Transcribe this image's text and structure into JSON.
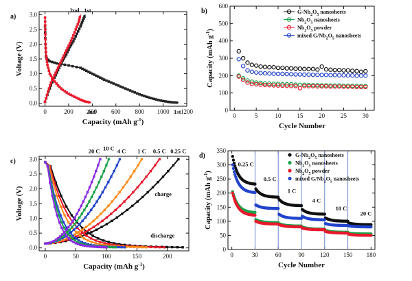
{
  "chart_data": [
    {
      "panel": "a)",
      "type": "line",
      "xlabel": "Capacity (mAh g-1)",
      "ylabel": "Voltage (V)",
      "xlim": [
        -50,
        1200
      ],
      "ylim": [
        -0.1,
        3.1
      ],
      "xticks": [
        "0",
        "200",
        "400",
        "600",
        "800",
        "1000",
        "1200"
      ],
      "xtick_values": [
        0,
        200,
        400,
        600,
        800,
        1000,
        1200
      ],
      "yticks": [
        "0.0",
        "0.5",
        "1.0",
        "1.5",
        "2.0",
        "2.5",
        "3.0"
      ],
      "ytick_values": [
        0,
        0.5,
        1.0,
        1.5,
        2.0,
        2.5,
        3.0
      ],
      "annotations": [
        {
          "text": "2nd",
          "x": 250,
          "y": 3.08
        },
        {
          "text": "1st",
          "x": 360,
          "y": 3.08
        },
        {
          "text": "2nd",
          "x": 390,
          "y": -0.35
        },
        {
          "text": "1st",
          "x": 1120,
          "y": -0.35
        }
      ],
      "series": [
        {
          "name": "1st discharge",
          "color": "#222222",
          "marker": "square",
          "points": [
            [
              0,
              2.6
            ],
            [
              3,
              2.0
            ],
            [
              8,
              1.6
            ],
            [
              15,
              1.5
            ],
            [
              40,
              1.42
            ],
            [
              100,
              1.35
            ],
            [
              200,
              1.28
            ],
            [
              300,
              1.2
            ],
            [
              350,
              1.1
            ],
            [
              400,
              1.0
            ],
            [
              450,
              0.9
            ],
            [
              500,
              0.8
            ],
            [
              560,
              0.7
            ],
            [
              620,
              0.6
            ],
            [
              680,
              0.5
            ],
            [
              740,
              0.4
            ],
            [
              800,
              0.3
            ],
            [
              860,
              0.22
            ],
            [
              920,
              0.15
            ],
            [
              980,
              0.09
            ],
            [
              1040,
              0.05
            ],
            [
              1080,
              0.03
            ],
            [
              1130,
              0.02
            ]
          ]
        },
        {
          "name": "1st charge",
          "color": "#222222",
          "marker": "square",
          "points": [
            [
              0,
              0.05
            ],
            [
              30,
              0.4
            ],
            [
              60,
              0.7
            ],
            [
              90,
              0.95
            ],
            [
              120,
              1.2
            ],
            [
              150,
              1.45
            ],
            [
              180,
              1.65
            ],
            [
              210,
              1.9
            ],
            [
              240,
              2.1
            ],
            [
              270,
              2.35
            ],
            [
              300,
              2.6
            ],
            [
              320,
              2.8
            ],
            [
              340,
              3.0
            ]
          ]
        },
        {
          "name": "2nd discharge",
          "color": "#e8192c",
          "marker": "square",
          "points": [
            [
              0,
              2.9
            ],
            [
              2,
              2.5
            ],
            [
              5,
              2.0
            ],
            [
              10,
              1.6
            ],
            [
              20,
              1.3
            ],
            [
              40,
              1.0
            ],
            [
              70,
              0.8
            ],
            [
              110,
              0.6
            ],
            [
              150,
              0.45
            ],
            [
              200,
              0.32
            ],
            [
              250,
              0.22
            ],
            [
              300,
              0.12
            ],
            [
              340,
              0.06
            ],
            [
              390,
              0.02
            ]
          ]
        },
        {
          "name": "2nd charge",
          "color": "#e8192c",
          "marker": "square",
          "points": [
            [
              0,
              0.05
            ],
            [
              25,
              0.4
            ],
            [
              50,
              0.7
            ],
            [
              80,
              0.95
            ],
            [
              110,
              1.2
            ],
            [
              140,
              1.45
            ],
            [
              170,
              1.7
            ],
            [
              200,
              1.95
            ],
            [
              230,
              2.2
            ],
            [
              260,
              2.5
            ],
            [
              285,
              2.75
            ],
            [
              300,
              3.0
            ]
          ]
        }
      ]
    },
    {
      "panel": "b)",
      "type": "scatter",
      "xlabel": "Cycle Number",
      "ylabel": "Capacity (mAh g-1)",
      "xlim": [
        -1,
        32
      ],
      "ylim": [
        0,
        600
      ],
      "xticks": [
        "0",
        "5",
        "10",
        "15",
        "20",
        "25",
        "30"
      ],
      "xtick_values": [
        0,
        5,
        10,
        15,
        20,
        25,
        30
      ],
      "yticks": [
        "0",
        "100",
        "200",
        "300",
        "400",
        "500",
        "600"
      ],
      "ytick_values": [
        0,
        100,
        200,
        300,
        400,
        500,
        600
      ],
      "legend": "top-right",
      "x": [
        1,
        2,
        3,
        4,
        5,
        6,
        7,
        8,
        9,
        10,
        11,
        12,
        13,
        14,
        15,
        16,
        17,
        18,
        19,
        20,
        21,
        22,
        23,
        24,
        25,
        26,
        27,
        28,
        29,
        30
      ],
      "series": [
        {
          "name": "G-Nb2O5 nanosheets",
          "color": "#111111",
          "values": [
            340,
            300,
            275,
            262,
            258,
            252,
            250,
            248,
            248,
            245,
            245,
            242,
            242,
            240,
            240,
            238,
            238,
            238,
            235,
            252,
            236,
            234,
            232,
            232,
            230,
            230,
            228,
            226,
            222,
            225
          ]
        },
        {
          "name": "Nb2O5 nanosheets",
          "color": "#1aa34a",
          "values": [
            200,
            185,
            172,
            165,
            160,
            158,
            155,
            154,
            153,
            152,
            150,
            150,
            150,
            148,
            147,
            147,
            146,
            145,
            145,
            144,
            144,
            143,
            143,
            143,
            142,
            142,
            141,
            141,
            140,
            140
          ]
        },
        {
          "name": "Nb2O5 powder",
          "color": "#e8192c",
          "values": [
            195,
            175,
            160,
            152,
            150,
            148,
            146,
            145,
            144,
            143,
            142,
            141,
            140,
            140,
            128,
            140,
            139,
            139,
            138,
            138,
            138,
            137,
            137,
            137,
            136,
            136,
            136,
            135,
            135,
            135
          ]
        },
        {
          "name": "mixed G/Nb2O5 nanosheets",
          "color": "#2244cc",
          "values": [
            295,
            255,
            230,
            222,
            218,
            215,
            213,
            212,
            211,
            210,
            210,
            209,
            208,
            207,
            207,
            206,
            206,
            205,
            205,
            204,
            204,
            203,
            203,
            202,
            202,
            201,
            201,
            200,
            200,
            200
          ]
        }
      ]
    },
    {
      "panel": "c)",
      "type": "line",
      "xlabel": "Capacity (mAh g-1)",
      "ylabel": "Voltage (V)",
      "xlim": [
        -10,
        235
      ],
      "ylim": [
        -0.1,
        3.1
      ],
      "xticks": [
        "0",
        "50",
        "100",
        "150",
        "200"
      ],
      "xtick_values": [
        0,
        50,
        100,
        150,
        200
      ],
      "yticks": [
        "0.0",
        "0.5",
        "1.0",
        "1.5",
        "2.0",
        "2.5",
        "3.0"
      ],
      "ytick_values": [
        0,
        0.5,
        1.0,
        1.5,
        2.0,
        2.5,
        3.0
      ],
      "rate_labels": [
        {
          "text": "20 C",
          "x": 80,
          "y": 3.2,
          "color": "#111111"
        },
        {
          "text": "10 C",
          "x": 104,
          "y": 3.3,
          "color": "#111111"
        },
        {
          "text": "4 C",
          "x": 125,
          "y": 3.2,
          "color": "#111111"
        },
        {
          "text": "1 C",
          "x": 158,
          "y": 3.2,
          "color": "#111111"
        },
        {
          "text": "0.5 C",
          "x": 187,
          "y": 3.2,
          "color": "#111111"
        },
        {
          "text": "0.25 C",
          "x": 218,
          "y": 3.2,
          "color": "#111111"
        }
      ],
      "annotations": [
        {
          "text": "charge",
          "x": 193,
          "y": 1.75
        },
        {
          "text": "discharge",
          "x": 192,
          "y": 0.35
        }
      ],
      "series": [
        {
          "name": "0.25 C",
          "color": "#111111",
          "dis_end": 225,
          "chg_end": 218
        },
        {
          "name": "0.5 C",
          "color": "#e8192c",
          "dis_end": 195,
          "chg_end": 187
        },
        {
          "name": "1 C",
          "color": "#ff8c1a",
          "dis_end": 165,
          "chg_end": 158
        },
        {
          "name": "4 C",
          "color": "#2244cc",
          "dis_end": 130,
          "chg_end": 122
        },
        {
          "name": "10 C",
          "color": "#1aa34a",
          "dis_end": 115,
          "chg_end": 104
        },
        {
          "name": "20 C",
          "color": "#8a2be2",
          "dis_end": 100,
          "chg_end": 90
        }
      ]
    },
    {
      "panel": "d)",
      "type": "scatter",
      "xlabel": "Cycle Number",
      "ylabel": "Capacity (mAh g-1)",
      "xlim": [
        -5,
        185
      ],
      "ylim": [
        0,
        350
      ],
      "xticks": [
        "0",
        "30",
        "60",
        "90",
        "120",
        "150",
        "180"
      ],
      "xtick_values": [
        0,
        30,
        60,
        90,
        120,
        150,
        180
      ],
      "yticks": [
        "0",
        "50",
        "100",
        "150",
        "200",
        "250",
        "300",
        "350"
      ],
      "ytick_values": [
        0,
        50,
        100,
        150,
        200,
        250,
        300,
        350
      ],
      "legend": "top-right",
      "section_boundaries": [
        30,
        60,
        90,
        120,
        150
      ],
      "rate_labels": [
        {
          "text": "0.25 C",
          "x": 8,
          "y": 295
        },
        {
          "text": "0.5 C",
          "x": 41,
          "y": 243
        },
        {
          "text": "1 C",
          "x": 72,
          "y": 200
        },
        {
          "text": "4 C",
          "x": 104,
          "y": 167
        },
        {
          "text": "10 C",
          "x": 134,
          "y": 139
        },
        {
          "text": "20 C",
          "x": 166,
          "y": 120
        }
      ],
      "series": [
        {
          "name": "G-Nb2O5 nanosheets",
          "color": "#111111",
          "segments": [
            [
              330,
              230
            ],
            [
              215,
              185
            ],
            [
              178,
              155
            ],
            [
              142,
              125
            ],
            [
              112,
              100
            ],
            [
              94,
              88
            ]
          ]
        },
        {
          "name": "Nb2O5 nanosheets",
          "color": "#1aa34a",
          "segments": [
            [
              205,
              130
            ],
            [
              106,
              95
            ],
            [
              92,
              83
            ],
            [
              80,
              72
            ],
            [
              68,
              61
            ],
            [
              58,
              55
            ]
          ]
        },
        {
          "name": "Nb2O5 powder",
          "color": "#e8192c",
          "segments": [
            [
              200,
              120
            ],
            [
              100,
              90
            ],
            [
              88,
              80
            ],
            [
              76,
              70
            ],
            [
              64,
              58
            ],
            [
              54,
              50
            ]
          ]
        },
        {
          "name": "mixed G/Nb2O5 nanosheets",
          "color": "#2244cc",
          "segments": [
            [
              300,
              200
            ],
            [
              158,
              145
            ],
            [
              125,
              110
            ],
            [
              118,
              105
            ],
            [
              92,
              85
            ],
            [
              84,
              80
            ]
          ]
        }
      ]
    }
  ]
}
